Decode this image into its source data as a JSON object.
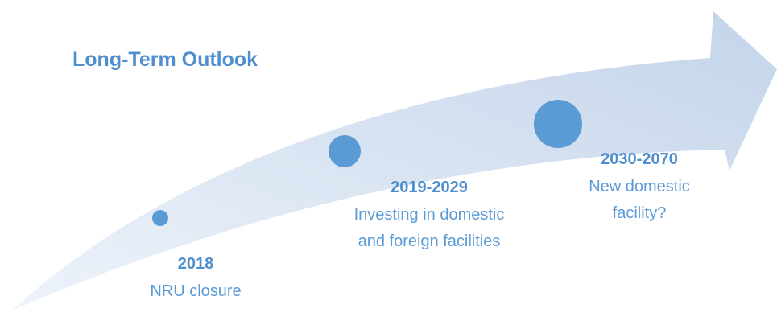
{
  "title": "Long-Term Outlook",
  "milestones": [
    {
      "period": "2018",
      "lines": [
        "NRU closure"
      ]
    },
    {
      "period": "2019-2029",
      "lines": [
        "Investing in domestic",
        "and foreign facilities"
      ]
    },
    {
      "period": "2030-2070",
      "lines": [
        "New domestic",
        "facility?"
      ]
    }
  ]
}
